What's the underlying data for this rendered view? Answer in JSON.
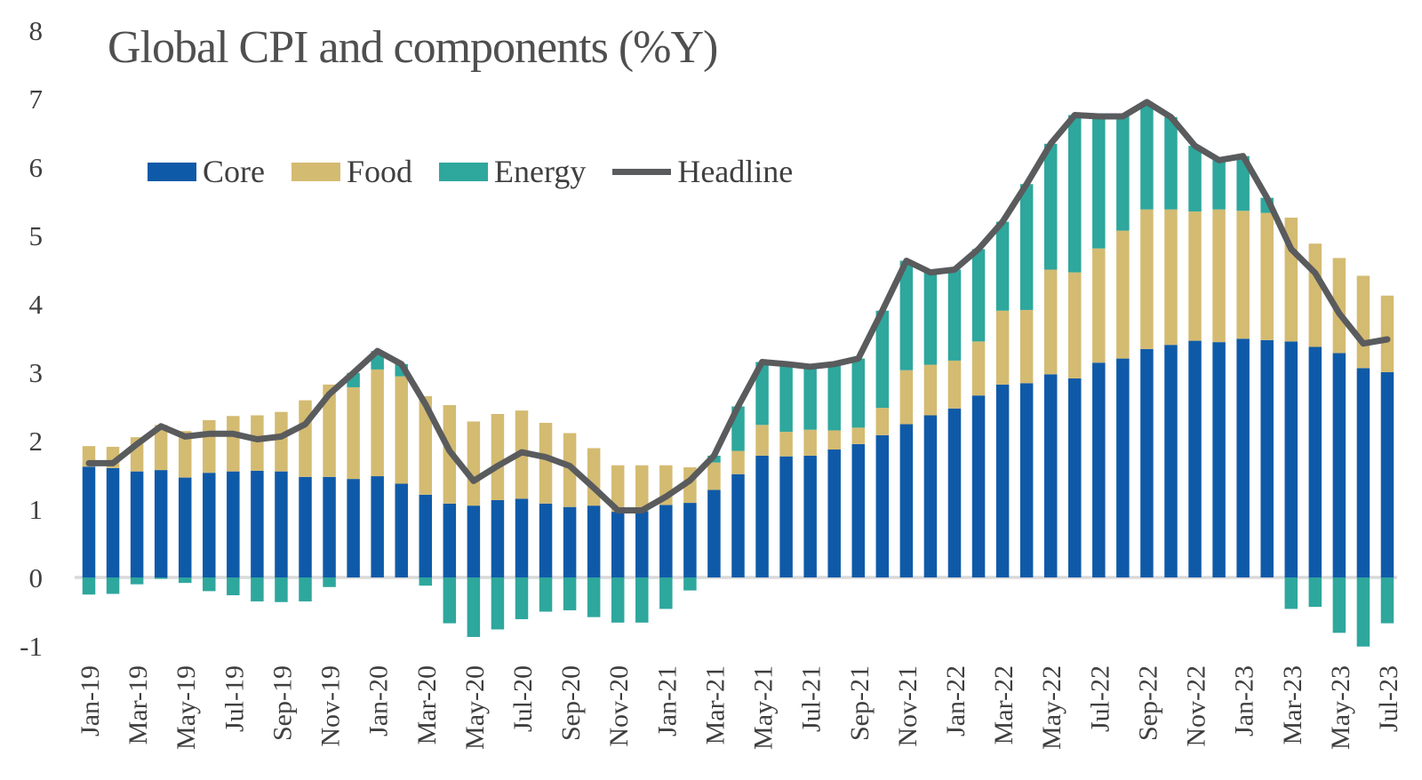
{
  "title": "Global CPI and components (%Y)",
  "legend": {
    "items": [
      {
        "label": "Core",
        "color": "#0F5AA8",
        "type": "swatch"
      },
      {
        "label": "Food",
        "color": "#D4BB72",
        "type": "swatch"
      },
      {
        "label": "Energy",
        "color": "#2EA79D",
        "type": "swatch"
      },
      {
        "label": "Headline",
        "color": "#595B5D",
        "type": "line"
      }
    ]
  },
  "colors": {
    "background": "#FFFFFF",
    "zero_line": "#D9D9D9",
    "axis_text": "#3F3F3F",
    "title_text": "#4F4F4F"
  },
  "chart_data": {
    "type": "bar",
    "subtype": "stacked-bars-with-line-overlay",
    "title": "Global CPI and components (%Y)",
    "xlabel": "",
    "ylabel": "",
    "ylim": [
      -1,
      8
    ],
    "y_ticks": [
      8,
      7,
      6,
      5,
      4,
      3,
      2,
      1,
      0,
      -1
    ],
    "grid": "zero-line-only",
    "legend_position": "top-left-inside",
    "x_tick_step": 2,
    "categories": [
      "Jan-19",
      "Feb-19",
      "Mar-19",
      "Apr-19",
      "May-19",
      "Jun-19",
      "Jul-19",
      "Aug-19",
      "Sep-19",
      "Oct-19",
      "Nov-19",
      "Dec-19",
      "Jan-20",
      "Feb-20",
      "Mar-20",
      "Apr-20",
      "May-20",
      "Jun-20",
      "Jul-20",
      "Aug-20",
      "Sep-20",
      "Oct-20",
      "Nov-20",
      "Dec-20",
      "Jan-21",
      "Feb-21",
      "Mar-21",
      "Apr-21",
      "May-21",
      "Jun-21",
      "Jul-21",
      "Aug-21",
      "Sep-21",
      "Oct-21",
      "Nov-21",
      "Dec-21",
      "Jan-22",
      "Feb-22",
      "Mar-22",
      "Apr-22",
      "May-22",
      "Jun-22",
      "Jul-22",
      "Aug-22",
      "Sep-22",
      "Oct-22",
      "Nov-22",
      "Dec-22",
      "Jan-23",
      "Feb-23",
      "Mar-23",
      "Apr-23",
      "May-23",
      "Jun-23",
      "Jul-23"
    ],
    "series": [
      {
        "name": "Core",
        "color": "#0F5AA8",
        "values": [
          1.62,
          1.6,
          1.55,
          1.57,
          1.46,
          1.53,
          1.55,
          1.56,
          1.55,
          1.47,
          1.47,
          1.44,
          1.48,
          1.37,
          1.21,
          1.08,
          1.05,
          1.13,
          1.15,
          1.08,
          1.03,
          1.05,
          0.96,
          0.97,
          1.06,
          1.09,
          1.28,
          1.51,
          1.78,
          1.77,
          1.78,
          1.87,
          1.95,
          2.08,
          2.24,
          2.37,
          2.47,
          2.66,
          2.82,
          2.84,
          2.97,
          2.91,
          3.14,
          3.2,
          3.34,
          3.4,
          3.46,
          3.44,
          3.49,
          3.47,
          3.45,
          3.37,
          3.28,
          3.06,
          3.0
        ]
      },
      {
        "name": "Food",
        "color": "#D4BB72",
        "values": [
          0.3,
          0.31,
          0.5,
          0.66,
          0.68,
          0.77,
          0.81,
          0.81,
          0.87,
          1.12,
          1.35,
          1.34,
          1.56,
          1.57,
          1.44,
          1.44,
          1.23,
          1.26,
          1.29,
          1.18,
          1.08,
          0.84,
          0.68,
          0.67,
          0.58,
          0.52,
          0.4,
          0.34,
          0.45,
          0.36,
          0.38,
          0.28,
          0.24,
          0.4,
          0.79,
          0.74,
          0.7,
          0.79,
          1.08,
          1.07,
          1.53,
          1.55,
          1.67,
          1.87,
          2.04,
          1.98,
          1.89,
          1.94,
          1.87,
          1.86,
          1.81,
          1.51,
          1.39,
          1.35,
          1.12
        ]
      },
      {
        "name": "Energy",
        "color": "#2EA79D",
        "values": [
          -0.25,
          -0.24,
          -0.1,
          -0.02,
          -0.08,
          -0.2,
          -0.26,
          -0.35,
          -0.36,
          -0.35,
          -0.14,
          0.21,
          0.27,
          0.18,
          -0.12,
          -0.67,
          -0.87,
          -0.76,
          -0.61,
          -0.5,
          -0.48,
          -0.58,
          -0.66,
          -0.66,
          -0.46,
          -0.19,
          0.1,
          0.65,
          0.92,
          0.99,
          0.92,
          0.97,
          1.01,
          1.42,
          1.6,
          1.35,
          1.33,
          1.35,
          1.3,
          1.84,
          1.84,
          2.3,
          1.93,
          1.67,
          1.57,
          1.35,
          0.96,
          0.72,
          0.8,
          0.22,
          -0.46,
          -0.43,
          -0.81,
          -1.01,
          -0.67
        ]
      }
    ],
    "line_series": {
      "name": "Headline",
      "color": "#595B5D",
      "values": [
        1.67,
        1.67,
        1.95,
        2.21,
        2.06,
        2.1,
        2.1,
        2.02,
        2.06,
        2.24,
        2.68,
        2.99,
        3.31,
        3.12,
        2.53,
        1.85,
        1.41,
        1.63,
        1.83,
        1.76,
        1.63,
        1.31,
        0.98,
        0.98,
        1.18,
        1.42,
        1.78,
        2.5,
        3.15,
        3.12,
        3.08,
        3.12,
        3.2,
        3.9,
        4.63,
        4.46,
        4.5,
        4.8,
        5.2,
        5.75,
        6.34,
        6.76,
        6.74,
        6.74,
        6.95,
        6.73,
        6.31,
        6.1,
        6.16,
        5.55,
        4.8,
        4.45,
        3.86,
        3.42,
        3.48
      ]
    }
  }
}
